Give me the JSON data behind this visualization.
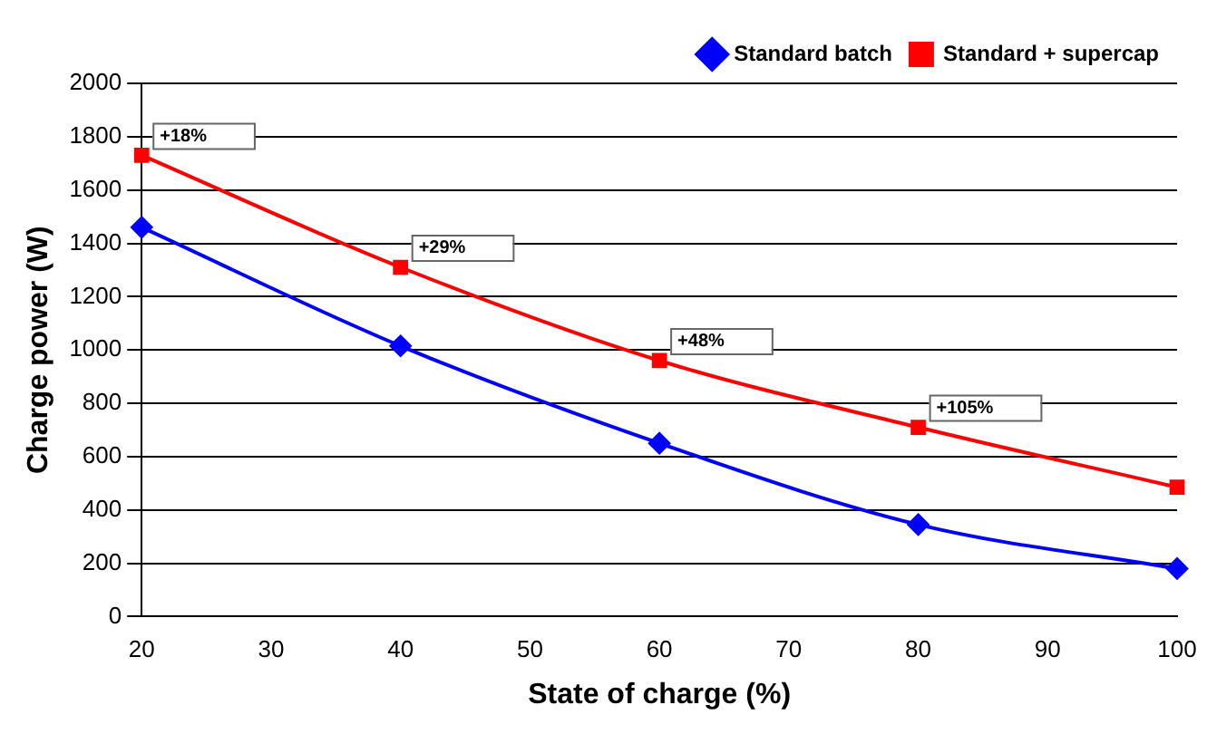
{
  "chart_data": {
    "type": "line",
    "xlabel": "State of charge (%)",
    "ylabel": "Charge power (W)",
    "x": [
      20,
      40,
      60,
      80,
      100
    ],
    "series": [
      {
        "name": "Standard batch",
        "color": "#0000ff",
        "marker": "diamond",
        "values": [
          1460,
          1015,
          650,
          345,
          180
        ]
      },
      {
        "name": "Standard + supercap",
        "color": "#ff0000",
        "marker": "square",
        "values": [
          1730,
          1310,
          960,
          710,
          485
        ]
      }
    ],
    "xlim": [
      20,
      100
    ],
    "xticks": [
      20,
      30,
      40,
      50,
      60,
      70,
      80,
      90,
      100
    ],
    "ylim": [
      0,
      2000
    ],
    "yticks": [
      0,
      200,
      400,
      600,
      800,
      1000,
      1200,
      1400,
      1600,
      1800,
      2000
    ],
    "grid": "y",
    "legend": "top right",
    "annotations": [
      {
        "text": "+18%",
        "x": 20,
        "y": 1730
      },
      {
        "text": "+29%",
        "x": 40,
        "y": 1310
      },
      {
        "text": "+48%",
        "x": 60,
        "y": 960
      },
      {
        "text": "+105%",
        "x": 80,
        "y": 710
      }
    ]
  }
}
